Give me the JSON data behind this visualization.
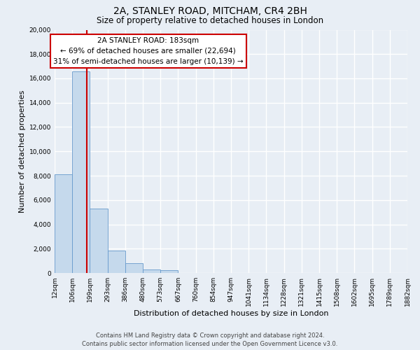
{
  "title": "2A, STANLEY ROAD, MITCHAM, CR4 2BH",
  "subtitle": "Size of property relative to detached houses in London",
  "xlabel": "Distribution of detached houses by size in London",
  "ylabel": "Number of detached properties",
  "bin_labels": [
    "12sqm",
    "106sqm",
    "199sqm",
    "293sqm",
    "386sqm",
    "480sqm",
    "573sqm",
    "667sqm",
    "760sqm",
    "854sqm",
    "947sqm",
    "1041sqm",
    "1134sqm",
    "1228sqm",
    "1321sqm",
    "1415sqm",
    "1508sqm",
    "1602sqm",
    "1695sqm",
    "1789sqm",
    "1882sqm"
  ],
  "bar_values": [
    8100,
    16600,
    5300,
    1850,
    800,
    300,
    230,
    0,
    0,
    0,
    0,
    0,
    0,
    0,
    0,
    0,
    0,
    0,
    0,
    0
  ],
  "bar_color": "#c5d9ec",
  "bar_edge_color": "#6699cc",
  "property_line_color": "#cc0000",
  "annotation_line1": "2A STANLEY ROAD: 183sqm",
  "annotation_line2": "← 69% of detached houses are smaller (22,694)",
  "annotation_line3": "31% of semi-detached houses are larger (10,139) →",
  "annotation_box_color": "#ffffff",
  "annotation_box_edge_color": "#cc0000",
  "ylim": [
    0,
    20000
  ],
  "yticks": [
    0,
    2000,
    4000,
    6000,
    8000,
    10000,
    12000,
    14000,
    16000,
    18000,
    20000
  ],
  "footer_line1": "Contains HM Land Registry data © Crown copyright and database right 2024.",
  "footer_line2": "Contains public sector information licensed under the Open Government Licence v3.0.",
  "bg_color": "#e8eef5",
  "plot_bg_color": "#e8eef5",
  "grid_color": "#ffffff",
  "title_fontsize": 10,
  "subtitle_fontsize": 8.5,
  "axis_label_fontsize": 8,
  "tick_fontsize": 6.5,
  "annotation_fontsize": 7.5,
  "footer_fontsize": 6
}
